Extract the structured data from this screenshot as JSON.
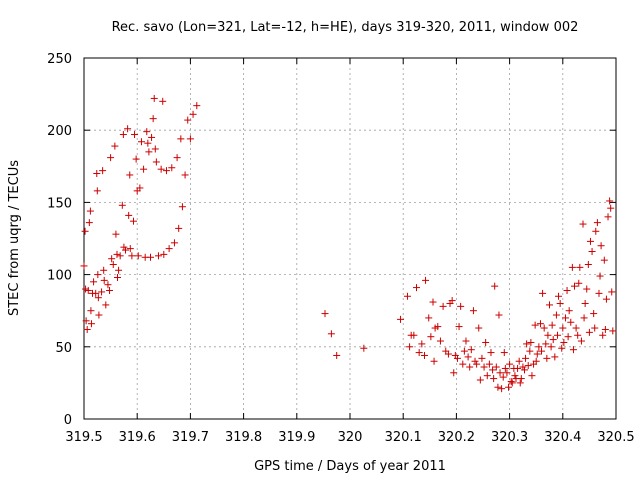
{
  "chart_data": {
    "type": "scatter",
    "title": "Rec. savo (Lon=321, Lat=-12, h=HE), days 319-320, 2011, window 002",
    "xlabel": "GPS time / Days of year 2011",
    "ylabel": "STEC from uqrg / TECUs",
    "xlim": [
      319.5,
      320.5
    ],
    "ylim": [
      0,
      250
    ],
    "xticks": [
      "319.5",
      "319.6",
      "319.7",
      "319.8",
      "319.9",
      "320",
      "320.1",
      "320.2",
      "320.3",
      "320.4",
      "320.5"
    ],
    "yticks": [
      "0",
      "50",
      "100",
      "150",
      "200",
      "250"
    ],
    "grid": true,
    "color": "#cc0000",
    "marker": "plus",
    "points": [
      [
        319.5,
        106
      ],
      [
        319.502,
        130
      ],
      [
        319.503,
        90
      ],
      [
        319.504,
        68
      ],
      [
        319.506,
        62
      ],
      [
        319.508,
        89
      ],
      [
        319.51,
        136
      ],
      [
        319.512,
        144
      ],
      [
        319.513,
        75
      ],
      [
        319.514,
        66
      ],
      [
        319.516,
        87
      ],
      [
        319.518,
        95
      ],
      [
        319.522,
        87
      ],
      [
        319.524,
        170
      ],
      [
        319.525,
        158
      ],
      [
        319.526,
        100
      ],
      [
        319.527,
        84
      ],
      [
        319.528,
        72
      ],
      [
        319.533,
        88
      ],
      [
        319.535,
        172
      ],
      [
        319.537,
        103
      ],
      [
        319.538,
        96
      ],
      [
        319.541,
        79
      ],
      [
        319.545,
        93
      ],
      [
        319.548,
        89
      ],
      [
        319.55,
        181
      ],
      [
        319.552,
        111
      ],
      [
        319.555,
        107
      ],
      [
        319.558,
        189
      ],
      [
        319.56,
        128
      ],
      [
        319.562,
        114
      ],
      [
        319.563,
        98
      ],
      [
        319.565,
        103
      ],
      [
        319.568,
        113
      ],
      [
        319.572,
        148
      ],
      [
        319.574,
        197
      ],
      [
        319.575,
        119
      ],
      [
        319.578,
        117
      ],
      [
        319.582,
        201
      ],
      [
        319.584,
        141
      ],
      [
        319.586,
        169
      ],
      [
        319.587,
        118
      ],
      [
        319.59,
        113
      ],
      [
        319.593,
        137
      ],
      [
        319.595,
        197
      ],
      [
        319.598,
        180
      ],
      [
        319.6,
        158
      ],
      [
        319.602,
        113
      ],
      [
        319.605,
        160
      ],
      [
        319.608,
        192
      ],
      [
        319.612,
        173
      ],
      [
        319.615,
        112
      ],
      [
        319.618,
        199
      ],
      [
        319.62,
        191
      ],
      [
        319.622,
        185
      ],
      [
        319.625,
        112
      ],
      [
        319.627,
        195
      ],
      [
        319.63,
        208
      ],
      [
        319.632,
        222
      ],
      [
        319.634,
        187
      ],
      [
        319.636,
        178
      ],
      [
        319.64,
        113
      ],
      [
        319.645,
        173
      ],
      [
        319.648,
        220
      ],
      [
        319.65,
        114
      ],
      [
        319.655,
        172
      ],
      [
        319.66,
        118
      ],
      [
        319.665,
        174
      ],
      [
        319.67,
        122
      ],
      [
        319.675,
        181
      ],
      [
        319.678,
        132
      ],
      [
        319.682,
        194
      ],
      [
        319.685,
        147
      ],
      [
        319.69,
        169
      ],
      [
        319.695,
        207
      ],
      [
        319.7,
        194
      ],
      [
        319.705,
        211
      ],
      [
        319.712,
        217
      ],
      [
        319.953,
        73
      ],
      [
        319.965,
        59
      ],
      [
        319.975,
        44
      ],
      [
        320.026,
        49
      ],
      [
        320.095,
        69
      ],
      [
        320.108,
        85
      ],
      [
        320.112,
        50
      ],
      [
        320.115,
        58
      ],
      [
        320.12,
        58
      ],
      [
        320.125,
        91
      ],
      [
        320.13,
        46
      ],
      [
        320.135,
        52
      ],
      [
        320.14,
        44
      ],
      [
        320.142,
        96
      ],
      [
        320.148,
        70
      ],
      [
        320.152,
        57
      ],
      [
        320.156,
        81
      ],
      [
        320.158,
        40
      ],
      [
        320.16,
        63
      ],
      [
        320.165,
        64
      ],
      [
        320.17,
        54
      ],
      [
        320.175,
        78
      ],
      [
        320.18,
        47
      ],
      [
        320.185,
        45
      ],
      [
        320.188,
        80
      ],
      [
        320.192,
        82
      ],
      [
        320.195,
        32
      ],
      [
        320.198,
        44
      ],
      [
        320.202,
        42
      ],
      [
        320.205,
        64
      ],
      [
        320.208,
        78
      ],
      [
        320.212,
        38
      ],
      [
        320.215,
        47
      ],
      [
        320.218,
        54
      ],
      [
        320.222,
        43
      ],
      [
        320.225,
        36
      ],
      [
        320.228,
        48
      ],
      [
        320.232,
        75
      ],
      [
        320.235,
        40
      ],
      [
        320.238,
        38
      ],
      [
        320.242,
        63
      ],
      [
        320.245,
        27
      ],
      [
        320.248,
        42
      ],
      [
        320.252,
        36
      ],
      [
        320.255,
        53
      ],
      [
        320.258,
        30
      ],
      [
        320.262,
        38
      ],
      [
        320.265,
        46
      ],
      [
        320.268,
        34
      ],
      [
        320.27,
        28
      ],
      [
        320.272,
        92
      ],
      [
        320.275,
        36
      ],
      [
        320.278,
        22
      ],
      [
        320.28,
        72
      ],
      [
        320.282,
        32
      ],
      [
        320.285,
        21
      ],
      [
        320.288,
        29
      ],
      [
        320.29,
        46
      ],
      [
        320.292,
        35
      ],
      [
        320.295,
        32
      ],
      [
        320.298,
        22
      ],
      [
        320.3,
        38
      ],
      [
        320.303,
        26
      ],
      [
        320.305,
        25
      ],
      [
        320.308,
        35
      ],
      [
        320.31,
        30
      ],
      [
        320.312,
        28
      ],
      [
        320.315,
        35
      ],
      [
        320.318,
        40
      ],
      [
        320.32,
        25
      ],
      [
        320.322,
        28
      ],
      [
        320.325,
        36
      ],
      [
        320.328,
        34
      ],
      [
        320.33,
        42
      ],
      [
        320.332,
        52
      ],
      [
        320.335,
        37
      ],
      [
        320.338,
        47
      ],
      [
        320.34,
        53
      ],
      [
        320.342,
        30
      ],
      [
        320.345,
        38
      ],
      [
        320.348,
        65
      ],
      [
        320.35,
        40
      ],
      [
        320.352,
        45
      ],
      [
        320.355,
        50
      ],
      [
        320.358,
        66
      ],
      [
        320.36,
        47
      ],
      [
        320.362,
        87
      ],
      [
        320.365,
        63
      ],
      [
        320.368,
        52
      ],
      [
        320.37,
        42
      ],
      [
        320.372,
        58
      ],
      [
        320.375,
        79
      ],
      [
        320.378,
        50
      ],
      [
        320.38,
        65
      ],
      [
        320.382,
        55
      ],
      [
        320.385,
        43
      ],
      [
        320.388,
        72
      ],
      [
        320.39,
        58
      ],
      [
        320.392,
        85
      ],
      [
        320.395,
        80
      ],
      [
        320.398,
        49
      ],
      [
        320.4,
        63
      ],
      [
        320.402,
        53
      ],
      [
        320.405,
        70
      ],
      [
        320.408,
        89
      ],
      [
        320.41,
        57
      ],
      [
        320.412,
        75
      ],
      [
        320.415,
        67
      ],
      [
        320.418,
        105
      ],
      [
        320.42,
        48
      ],
      [
        320.422,
        92
      ],
      [
        320.425,
        63
      ],
      [
        320.428,
        58
      ],
      [
        320.43,
        94
      ],
      [
        320.432,
        105
      ],
      [
        320.435,
        54
      ],
      [
        320.438,
        135
      ],
      [
        320.44,
        70
      ],
      [
        320.442,
        80
      ],
      [
        320.445,
        90
      ],
      [
        320.448,
        107
      ],
      [
        320.45,
        60
      ],
      [
        320.452,
        123
      ],
      [
        320.455,
        116
      ],
      [
        320.458,
        73
      ],
      [
        320.46,
        63
      ],
      [
        320.462,
        130
      ],
      [
        320.465,
        136
      ],
      [
        320.468,
        87
      ],
      [
        320.47,
        99
      ],
      [
        320.472,
        120
      ],
      [
        320.475,
        58
      ],
      [
        320.478,
        110
      ],
      [
        320.48,
        62
      ],
      [
        320.482,
        83
      ],
      [
        320.485,
        140
      ],
      [
        320.488,
        151
      ],
      [
        320.49,
        146
      ],
      [
        320.492,
        88
      ],
      [
        320.494,
        61
      ]
    ]
  }
}
